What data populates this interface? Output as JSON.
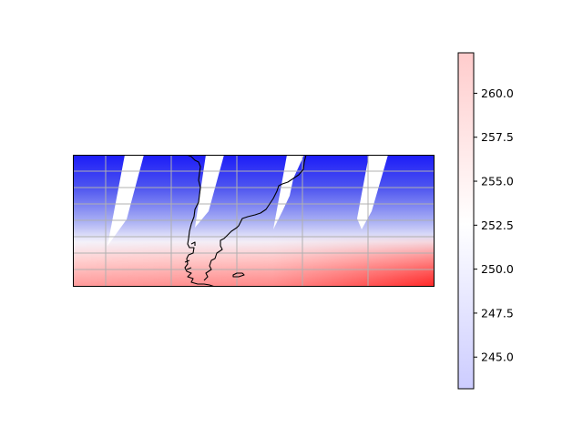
{
  "colorbar": {
    "min": 243.2,
    "max": 262.3,
    "center": 252.6,
    "ticks": [
      {
        "value": 245.0,
        "label": "245.0"
      },
      {
        "value": 247.5,
        "label": "247.5"
      },
      {
        "value": 250.0,
        "label": "250.0"
      },
      {
        "value": 252.5,
        "label": "252.5"
      },
      {
        "value": 255.0,
        "label": "255.0"
      },
      {
        "value": 257.5,
        "label": "257.5"
      },
      {
        "value": 260.0,
        "label": "260.0"
      }
    ]
  },
  "map": {
    "grid": "on",
    "coastline_color": "#000000",
    "colormap_low": "#1a1aff",
    "colormap_mid": "#ffffff",
    "colormap_high": "#ff1a1a",
    "swath_gaps": 4
  }
}
